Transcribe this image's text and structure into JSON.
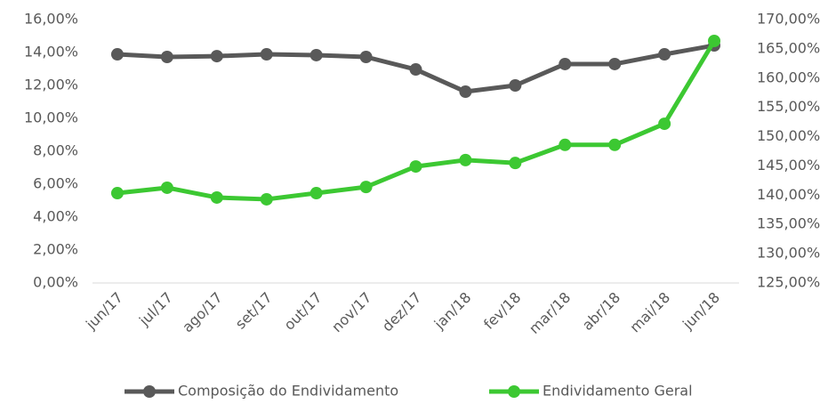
{
  "chart_data": {
    "type": "line",
    "categories": [
      "jun/17",
      "jul/17",
      "ago/17",
      "set/17",
      "out/17",
      "nov/17",
      "dez/17",
      "jan/18",
      "fev/18",
      "mar/18",
      "abr/18",
      "mai/18",
      "jun/18"
    ],
    "series": [
      {
        "name": "Composição do Endividamento",
        "color": "#595959",
        "axis": "y",
        "values": [
          13.89,
          13.73,
          13.78,
          13.89,
          13.84,
          13.73,
          12.97,
          11.62,
          12.0,
          13.3,
          13.3,
          13.89,
          14.43
        ]
      },
      {
        "name": "Endividamento Geral",
        "color": "#3cc832",
        "axis": "y2",
        "values": [
          140.35,
          141.27,
          139.6,
          139.3,
          140.35,
          141.4,
          144.9,
          146.0,
          145.5,
          148.6,
          148.6,
          152.2,
          166.35
        ]
      }
    ],
    "ylim": [
      0,
      16
    ],
    "yticks": [
      {
        "value": 0,
        "label": "0,00%"
      },
      {
        "value": 2,
        "label": "2,00%"
      },
      {
        "value": 4,
        "label": "4,00%"
      },
      {
        "value": 6,
        "label": "6,00%"
      },
      {
        "value": 8,
        "label": "8,00%"
      },
      {
        "value": 10,
        "label": "10,00%"
      },
      {
        "value": 12,
        "label": "12,00%"
      },
      {
        "value": 14,
        "label": "14,00%"
      },
      {
        "value": 16,
        "label": "16,00%"
      }
    ],
    "y2lim": [
      125,
      170
    ],
    "y2ticks": [
      {
        "value": 125,
        "label": "125,00%"
      },
      {
        "value": 130,
        "label": "130,00%"
      },
      {
        "value": 135,
        "label": "135,00%"
      },
      {
        "value": 140,
        "label": "140,00%"
      },
      {
        "value": 145,
        "label": "145,00%"
      },
      {
        "value": 150,
        "label": "150,00%"
      },
      {
        "value": 155,
        "label": "155,00%"
      },
      {
        "value": 160,
        "label": "160,00%"
      },
      {
        "value": 165,
        "label": "165,00%"
      },
      {
        "value": 170,
        "label": "170,00%"
      }
    ],
    "grid": false,
    "legend": "bottom"
  }
}
